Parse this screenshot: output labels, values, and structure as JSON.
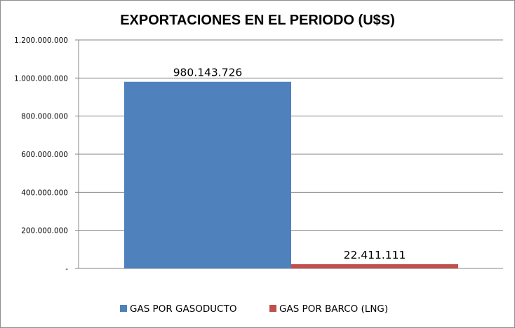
{
  "chart_data": {
    "type": "bar",
    "title": "EXPORTACIONES EN EL PERIODO (U$S)",
    "xlabel": "",
    "ylabel": "",
    "ylim": [
      0,
      1200000000
    ],
    "y_ticks": [
      0,
      200000000,
      400000000,
      600000000,
      800000000,
      1000000000,
      1200000000
    ],
    "y_tick_labels": [
      "-",
      "200.000.000",
      "400.000.000",
      "600.000.000",
      "800.000.000",
      "1.000.000.000",
      "1.200.000.000"
    ],
    "grid": true,
    "legend_position": "bottom",
    "series": [
      {
        "name": "GAS POR GASODUCTO",
        "values": [
          980143726
        ],
        "label": "980.143.726",
        "color": "#4f81bd"
      },
      {
        "name": "GAS POR BARCO (LNG)",
        "values": [
          22411111
        ],
        "label": "22.411.111",
        "color": "#c0504d"
      }
    ]
  }
}
